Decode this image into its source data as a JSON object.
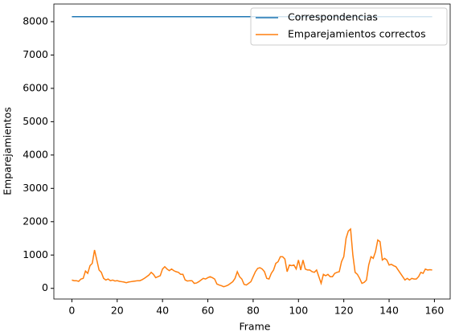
{
  "chart_data": {
    "type": "line",
    "xlabel": "Frame",
    "ylabel": "Emparejamientos",
    "x": [
      0,
      1,
      2,
      3,
      4,
      5,
      6,
      7,
      8,
      9,
      10,
      11,
      12,
      13,
      14,
      15,
      16,
      17,
      18,
      19,
      20,
      21,
      22,
      23,
      24,
      25,
      26,
      27,
      28,
      29,
      30,
      31,
      32,
      33,
      34,
      35,
      36,
      37,
      38,
      39,
      40,
      41,
      42,
      43,
      44,
      45,
      46,
      47,
      48,
      49,
      50,
      51,
      52,
      53,
      54,
      55,
      56,
      57,
      58,
      59,
      60,
      61,
      62,
      63,
      64,
      65,
      66,
      67,
      68,
      69,
      70,
      71,
      72,
      73,
      74,
      75,
      76,
      77,
      78,
      79,
      80,
      81,
      82,
      83,
      84,
      85,
      86,
      87,
      88,
      89,
      90,
      91,
      92,
      93,
      94,
      95,
      96,
      97,
      98,
      99,
      100,
      101,
      102,
      103,
      104,
      105,
      106,
      107,
      108,
      109,
      110,
      111,
      112,
      113,
      114,
      115,
      116,
      117,
      118,
      119,
      120,
      121,
      122,
      123,
      124,
      125,
      126,
      127,
      128,
      129,
      130,
      131,
      132,
      133,
      134,
      135,
      136,
      137,
      138,
      139,
      140,
      141,
      142,
      143,
      144,
      145,
      146,
      147,
      148,
      149,
      150,
      151,
      152,
      153,
      154,
      155,
      156,
      157,
      158,
      159
    ],
    "series": [
      {
        "name": "Correspondencias",
        "color": "#1f77b4",
        "values": [
          8150,
          8150,
          8150,
          8150,
          8150,
          8150,
          8150,
          8150,
          8150,
          8150,
          8150,
          8150,
          8150,
          8150,
          8150,
          8150,
          8150,
          8150,
          8150,
          8150,
          8150,
          8150,
          8150,
          8150,
          8150,
          8150,
          8150,
          8150,
          8150,
          8150,
          8150,
          8150,
          8150,
          8150,
          8150,
          8150,
          8150,
          8150,
          8150,
          8150,
          8150,
          8150,
          8150,
          8150,
          8150,
          8150,
          8150,
          8150,
          8150,
          8150,
          8150,
          8150,
          8150,
          8150,
          8150,
          8150,
          8150,
          8150,
          8150,
          8150,
          8150,
          8150,
          8150,
          8150,
          8150,
          8150,
          8150,
          8150,
          8150,
          8150,
          8150,
          8150,
          8150,
          8150,
          8150,
          8150,
          8150,
          8150,
          8150,
          8150,
          8150,
          8150,
          8150,
          8150,
          8150,
          8150,
          8150,
          8150,
          8150,
          8150,
          8150,
          8150,
          8150,
          8150,
          8150,
          8150,
          8150,
          8150,
          8150,
          8150,
          8150,
          8150,
          8150,
          8150,
          8150,
          8150,
          8150,
          8150,
          8150,
          8150,
          8150,
          8150,
          8150,
          8150,
          8150,
          8150,
          8150,
          8150,
          8150,
          8150,
          8150,
          8150,
          8150,
          8150,
          8150,
          8150,
          8150,
          8150,
          8150,
          8150,
          8150,
          8150,
          8150,
          8150,
          8150,
          8150,
          8150,
          8150,
          8150,
          8150,
          8150,
          8150,
          8150,
          8150,
          8150,
          8150,
          8150,
          8150,
          8150,
          8150,
          8150,
          8150,
          8150,
          8150,
          8150,
          8150,
          8150,
          8150,
          8150,
          8150
        ]
      },
      {
        "name": "Emparejamientos correctos",
        "color": "#ff7f0e",
        "values": [
          250,
          230,
          230,
          210,
          280,
          300,
          520,
          450,
          680,
          750,
          1150,
          850,
          550,
          480,
          300,
          250,
          280,
          230,
          250,
          220,
          230,
          210,
          200,
          190,
          170,
          190,
          200,
          210,
          220,
          230,
          230,
          260,
          300,
          350,
          400,
          480,
          420,
          320,
          350,
          380,
          580,
          650,
          580,
          530,
          580,
          530,
          500,
          480,
          420,
          420,
          250,
          220,
          230,
          230,
          150,
          160,
          200,
          250,
          300,
          280,
          320,
          350,
          320,
          280,
          130,
          100,
          80,
          50,
          70,
          100,
          150,
          200,
          300,
          500,
          350,
          280,
          120,
          100,
          150,
          200,
          350,
          500,
          600,
          620,
          580,
          500,
          300,
          280,
          450,
          550,
          750,
          800,
          950,
          950,
          880,
          500,
          700,
          680,
          700,
          580,
          850,
          550,
          850,
          580,
          550,
          550,
          500,
          480,
          550,
          350,
          150,
          420,
          380,
          420,
          350,
          350,
          450,
          480,
          500,
          800,
          950,
          1500,
          1720,
          1780,
          1000,
          480,
          420,
          300,
          150,
          180,
          250,
          700,
          950,
          900,
          1100,
          1450,
          1400,
          850,
          900,
          850,
          700,
          720,
          680,
          650,
          550,
          450,
          350,
          250,
          300,
          250,
          300,
          280,
          280,
          350,
          480,
          450,
          580,
          550,
          560,
          550
        ]
      }
    ],
    "xlim": [
      -7.95,
      166.95
    ],
    "ylim": [
      -320,
      8530
    ],
    "xticks": [
      0,
      20,
      40,
      60,
      80,
      100,
      120,
      140,
      160
    ],
    "yticks": [
      0,
      1000,
      2000,
      3000,
      4000,
      5000,
      6000,
      7000,
      8000
    ],
    "legend": "upper right"
  }
}
